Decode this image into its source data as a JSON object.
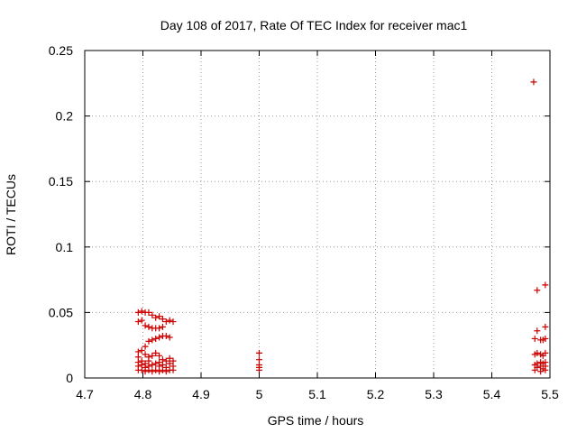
{
  "chart_data": {
    "type": "scatter",
    "title": "Day 108 of 2017, Rate Of TEC Index for receiver mac1",
    "xlabel": "GPS time / hours",
    "ylabel": "ROTI / TECUs",
    "xlim": [
      4.7,
      5.5
    ],
    "ylim": [
      0,
      0.25
    ],
    "xticks": [
      "4.7",
      "4.8",
      "4.9",
      "5",
      "5.1",
      "5.2",
      "5.3",
      "5.4",
      "5.5"
    ],
    "yticks": [
      "0",
      "0.05",
      "0.1",
      "0.15",
      "0.2",
      "0.25"
    ],
    "grid": true,
    "marker": "+",
    "color": "#cc0000",
    "points": [
      [
        4.792,
        0.006
      ],
      [
        4.792,
        0.009
      ],
      [
        4.792,
        0.012
      ],
      [
        4.792,
        0.016
      ],
      [
        4.792,
        0.02
      ],
      [
        4.792,
        0.043
      ],
      [
        4.792,
        0.05
      ],
      [
        4.798,
        0.006
      ],
      [
        4.798,
        0.01
      ],
      [
        4.798,
        0.013
      ],
      [
        4.798,
        0.021
      ],
      [
        4.798,
        0.044
      ],
      [
        4.798,
        0.051
      ],
      [
        4.804,
        0.005
      ],
      [
        4.804,
        0.008
      ],
      [
        4.804,
        0.011
      ],
      [
        4.804,
        0.018
      ],
      [
        4.804,
        0.024
      ],
      [
        4.804,
        0.04
      ],
      [
        4.804,
        0.05
      ],
      [
        4.81,
        0.006
      ],
      [
        4.81,
        0.009
      ],
      [
        4.81,
        0.013
      ],
      [
        4.81,
        0.016
      ],
      [
        4.81,
        0.028
      ],
      [
        4.81,
        0.039
      ],
      [
        4.81,
        0.05
      ],
      [
        4.816,
        0.005
      ],
      [
        4.816,
        0.01
      ],
      [
        4.816,
        0.017
      ],
      [
        4.816,
        0.029
      ],
      [
        4.816,
        0.038
      ],
      [
        4.816,
        0.048
      ],
      [
        4.822,
        0.006
      ],
      [
        4.822,
        0.011
      ],
      [
        4.822,
        0.019
      ],
      [
        4.822,
        0.03
      ],
      [
        4.822,
        0.038
      ],
      [
        4.822,
        0.046
      ],
      [
        4.828,
        0.005
      ],
      [
        4.828,
        0.009
      ],
      [
        4.828,
        0.012
      ],
      [
        4.828,
        0.017
      ],
      [
        4.828,
        0.031
      ],
      [
        4.828,
        0.038
      ],
      [
        4.828,
        0.047
      ],
      [
        4.834,
        0.006
      ],
      [
        4.834,
        0.01
      ],
      [
        4.834,
        0.014
      ],
      [
        4.834,
        0.032
      ],
      [
        4.834,
        0.039
      ],
      [
        4.834,
        0.045
      ],
      [
        4.84,
        0.005
      ],
      [
        4.84,
        0.008
      ],
      [
        4.84,
        0.013
      ],
      [
        4.84,
        0.032
      ],
      [
        4.84,
        0.043
      ],
      [
        4.846,
        0.006
      ],
      [
        4.846,
        0.011
      ],
      [
        4.846,
        0.015
      ],
      [
        4.846,
        0.031
      ],
      [
        4.846,
        0.044
      ],
      [
        4.852,
        0.006
      ],
      [
        4.852,
        0.009
      ],
      [
        4.852,
        0.013
      ],
      [
        4.852,
        0.043
      ],
      [
        5.0,
        0.006
      ],
      [
        5.0,
        0.008
      ],
      [
        5.0,
        0.01
      ],
      [
        5.0,
        0.014
      ],
      [
        5.0,
        0.019
      ],
      [
        5.472,
        0.226
      ],
      [
        5.474,
        0.006
      ],
      [
        5.474,
        0.01
      ],
      [
        5.474,
        0.018
      ],
      [
        5.474,
        0.03
      ],
      [
        5.478,
        0.008
      ],
      [
        5.478,
        0.011
      ],
      [
        5.478,
        0.019
      ],
      [
        5.478,
        0.036
      ],
      [
        5.478,
        0.067
      ],
      [
        5.484,
        0.005
      ],
      [
        5.484,
        0.009
      ],
      [
        5.484,
        0.012
      ],
      [
        5.484,
        0.018
      ],
      [
        5.484,
        0.029
      ],
      [
        5.488,
        0.007
      ],
      [
        5.488,
        0.011
      ],
      [
        5.488,
        0.017
      ],
      [
        5.488,
        0.029
      ],
      [
        5.492,
        0.006
      ],
      [
        5.492,
        0.009
      ],
      [
        5.492,
        0.012
      ],
      [
        5.492,
        0.019
      ],
      [
        5.492,
        0.03
      ],
      [
        5.492,
        0.039
      ],
      [
        5.492,
        0.071
      ]
    ]
  }
}
